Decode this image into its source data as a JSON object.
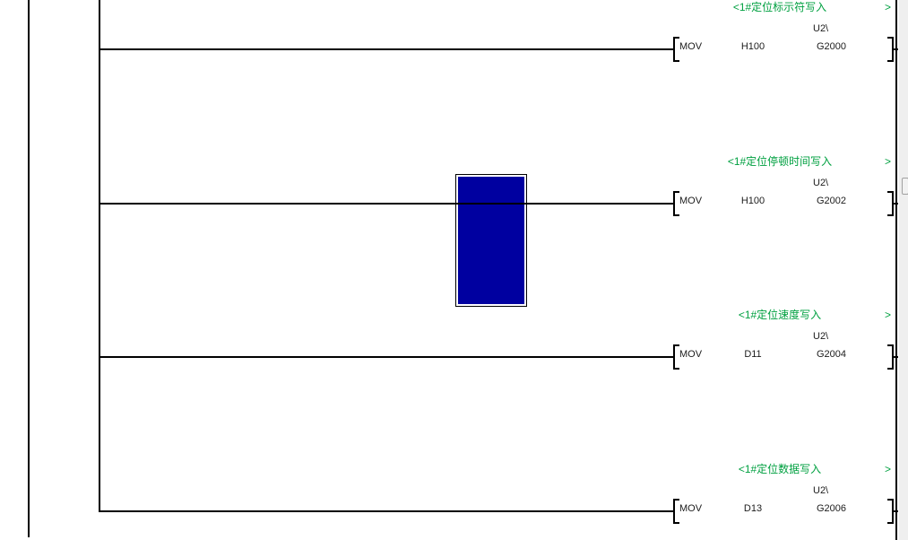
{
  "colors": {
    "comment_green": "#00A040",
    "cursor_blue": "#0000A0",
    "line_black": "#000000",
    "scrollbar_thumb_border": "#a0a0a0"
  },
  "rungs": [
    {
      "comment_open": "<1#定位标示符写入",
      "comment_close": ">",
      "op": "MOV",
      "src": "H100",
      "dest_channel": "U2\\",
      "dest": "G2000"
    },
    {
      "comment_open": "<1#定位停顿时间写入",
      "comment_close": ">",
      "op": "MOV",
      "src": "H100",
      "dest_channel": "U2\\",
      "dest": "G2002"
    },
    {
      "comment_open": "<1#定位速度写入",
      "comment_close": ">",
      "op": "MOV",
      "src": "D11",
      "dest_channel": "U2\\",
      "dest": "G2004"
    },
    {
      "comment_open": "<1#定位数据写入",
      "comment_close": ">",
      "op": "MOV",
      "src": "D13",
      "dest_channel": "U2\\",
      "dest": "G2006"
    }
  ]
}
